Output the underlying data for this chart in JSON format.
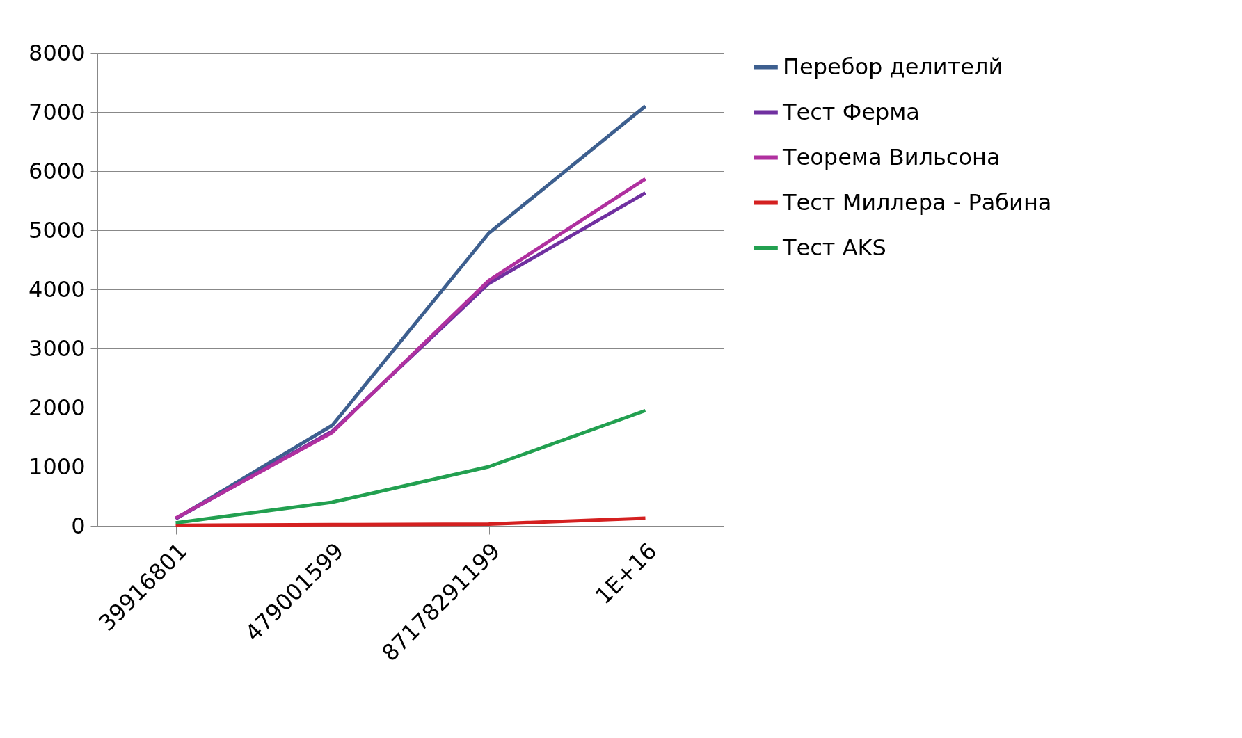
{
  "chart_data": {
    "type": "line",
    "categories": [
      "39916801",
      "479001599",
      "87178291199",
      "1E+16"
    ],
    "series": [
      {
        "name": "Перебор делителй",
        "color": "#3d5f8f",
        "values": [
          120,
          1700,
          4950,
          7100
        ]
      },
      {
        "name": "Тест Ферма",
        "color": "#7030a0",
        "values": [
          120,
          1600,
          4100,
          5630
        ]
      },
      {
        "name": "Теорема Вильсона",
        "color": "#b0309f",
        "values": [
          130,
          1580,
          4150,
          5870
        ]
      },
      {
        "name": "Тест Миллера - Рабина",
        "color": "#d42020",
        "values": [
          10,
          20,
          30,
          130
        ]
      },
      {
        "name": "Тест AKS",
        "color": "#22a050",
        "values": [
          50,
          400,
          1000,
          1950
        ]
      }
    ],
    "ylim": [
      0,
      8000
    ],
    "yticks": [
      0,
      1000,
      2000,
      3000,
      4000,
      5000,
      6000,
      7000,
      8000
    ],
    "grid": "y",
    "legend": "right"
  }
}
